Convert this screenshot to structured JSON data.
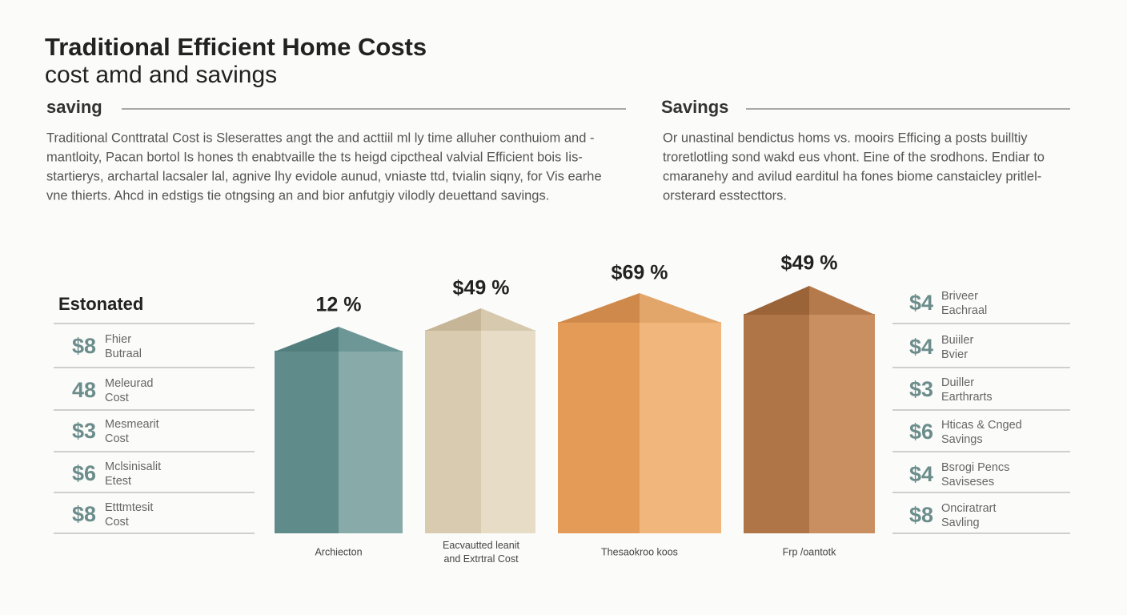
{
  "header": {
    "title": "Traditional Efficient Home Costs",
    "subtitle": "cost amd and savings"
  },
  "left_section": {
    "heading": "saving",
    "body": [
      "Traditional Conttratal Cost is Sleserattes angt the and acttiil ml ly time alluher conthuiom and -",
      "mantloity, Pacan bortol Is hones th enabtvaille the ts heigd cipctheal valvial Efficient bois Iis-",
      "startierys, archartal lacsaler lal, agnive lhy evidole aunud, vniaste ttd, tvialin siqny, for Vis earhe",
      "vne thierts. Ahcd in edstigs tie otngsing an and bior anfutgiy vilodly deuettand savings."
    ]
  },
  "right_section": {
    "heading": "Savings",
    "body": [
      "Or unastinal bendictus homs vs. mooirs Efficing a posts builltiy",
      "troretlotling sond wakd eus vhont. Eine of the srodhons. Endiar to",
      "cmaranehy and avilud earditul ha fones biome canstaicley pritlel-",
      "orsterard esstecttors."
    ]
  },
  "left_list": {
    "heading": "Estonated",
    "items": [
      {
        "amount": "$8",
        "label": [
          "Fhier",
          "Butraal"
        ]
      },
      {
        "amount": "48",
        "label": [
          "Meleurad",
          "Cost"
        ]
      },
      {
        "amount": "$3",
        "label": [
          "Mesmearit",
          "Cost"
        ]
      },
      {
        "amount": "$6",
        "label": [
          "Mclsinisalit",
          "Etest"
        ]
      },
      {
        "amount": "$8",
        "label": [
          "Etttmtesit",
          "Cost"
        ]
      }
    ]
  },
  "bars": [
    {
      "label": "12 %",
      "caption": [
        "Archiecton"
      ]
    },
    {
      "label": "$49 %",
      "caption": [
        "Eacvautted leanit",
        "and Extrtral Cost"
      ]
    },
    {
      "label": "$69 %",
      "caption": [
        "Thesaokroo koos"
      ]
    },
    {
      "label": "$49 %",
      "caption": [
        "Frp /oantotk"
      ]
    }
  ],
  "right_list": {
    "items": [
      {
        "amount": "$4",
        "label": [
          "Briveer",
          "Eachraal"
        ]
      },
      {
        "amount": "$4",
        "label": [
          "Buiiler",
          "Bvier"
        ]
      },
      {
        "amount": "$3",
        "label": [
          "Duiller",
          "Earthrarts"
        ]
      },
      {
        "amount": "$6",
        "label": [
          "Hticas & Cnged",
          "Savings"
        ]
      },
      {
        "amount": "$4",
        "label": [
          "Bsrogi Pencs",
          "Saviseses"
        ]
      },
      {
        "amount": "$8",
        "label": [
          "Onciratrart",
          "Savling"
        ]
      }
    ]
  }
}
